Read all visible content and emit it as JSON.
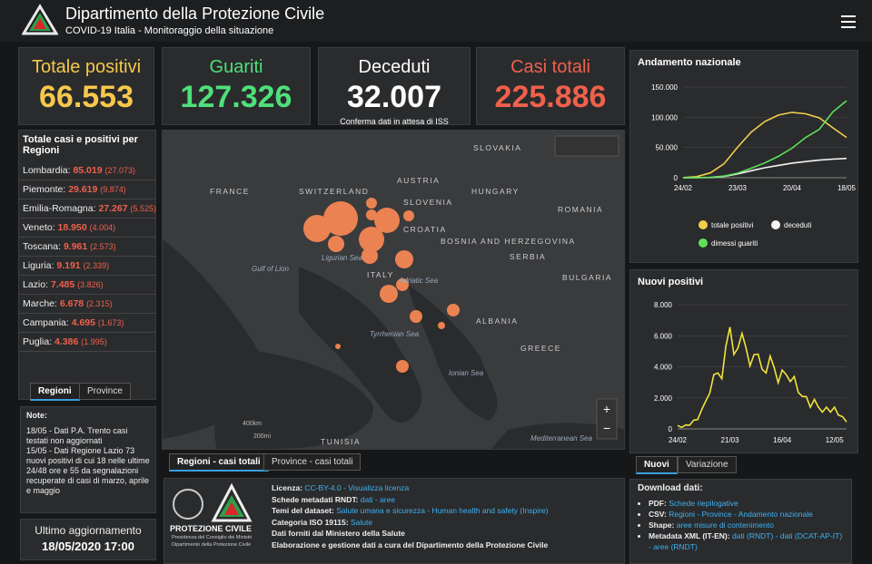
{
  "header": {
    "title": "Dipartimento della Protezione Civile",
    "subtitle": "COVID-19 Italia - Monitoraggio della situazione"
  },
  "kpis": [
    {
      "label": "Totale positivi",
      "value": "66.553",
      "color": "#f6c84b"
    },
    {
      "label": "Guariti",
      "value": "127.326",
      "color": "#4ee07a"
    },
    {
      "label": "Deceduti",
      "value": "32.007",
      "note": "Conferma dati in attesa di ISS",
      "color": "#ffffff"
    },
    {
      "label": "Casi totali",
      "value": "225.886",
      "color": "#f0604c"
    }
  ],
  "regions": {
    "title": "Totale casi e positivi per Regioni",
    "rows": [
      {
        "name": "Lombardia:",
        "total": "85.019",
        "positives": "(27.073)"
      },
      {
        "name": "Piemonte:",
        "total": "29.619",
        "positives": "(9.874)"
      },
      {
        "name": "Emilia-Romagna:",
        "total": "27.267",
        "positives": "(5.525)"
      },
      {
        "name": "Veneto:",
        "total": "18.950",
        "positives": "(4.004)"
      },
      {
        "name": "Toscana:",
        "total": "9.961",
        "positives": "(2.573)"
      },
      {
        "name": "Liguria:",
        "total": "9.191",
        "positives": "(2.339)"
      },
      {
        "name": "Lazio:",
        "total": "7.485",
        "positives": "(3.826)"
      },
      {
        "name": "Marche:",
        "total": "6.678",
        "positives": "(2.315)"
      },
      {
        "name": "Campania:",
        "total": "4.695",
        "positives": "(1.673)"
      },
      {
        "name": "Puglia:",
        "total": "4.386",
        "positives": "(1.995)"
      }
    ],
    "tabs": [
      "Regioni",
      "Province"
    ]
  },
  "notes": {
    "title": "Note:",
    "items": [
      "18/05 - Dati P.A. Trento casi testati non aggiornati",
      "15/05 - Dati Regione Lazio 73 nuovi positivi di cui 18 nelle ultime 24/48 ore e 55 da segnalazioni recuperate di casi di marzo, aprile e maggio"
    ]
  },
  "update": {
    "label": "Ultimo aggiornamento",
    "value": "18/05/2020 17:00"
  },
  "map": {
    "labels": [
      "FRANCE",
      "SWITZERLAND",
      "AUSTRIA",
      "SLOVAKIA",
      "HUNGARY",
      "SLOVENIA",
      "CROATIA",
      "ROMANIA",
      "BOSNIA AND HERZEGOVINA",
      "SERBIA",
      "BULGARIA",
      "ITALY",
      "Ligurian Sea",
      "Gulf of Lion",
      "Adriatic Sea",
      "Tyrrhenian Sea",
      "ALBANIA",
      "GREECE",
      "Ionian Sea",
      "TUNISIA",
      "Mediterranean Sea"
    ],
    "scale": [
      "400km",
      "200mi"
    ],
    "tabs": [
      "Regioni - casi totali",
      "Province - casi totali"
    ]
  },
  "logo": {
    "name": "PROTEZIONE CIVILE",
    "lines": [
      "Presidenza del Consiglio dei Ministri",
      "Dipartimento della Protezione Civile"
    ]
  },
  "info": [
    {
      "label": "Licenza:",
      "text": "CC-BY-4.0 - Visualizza licenza"
    },
    {
      "label": "Schede metadati RNDT:",
      "text": "dati - aree"
    },
    {
      "label": "Temi del dataset:",
      "text": "Salute umana e sicurezza - Human health and safety (Inspire)"
    },
    {
      "label": "Categoria ISO 19115:",
      "text": "Salute"
    },
    {
      "label": "Dati forniti dal Ministero della Salute"
    },
    {
      "label": "Elaborazione e gestione dati a cura del Dipartimento della Protezione Civile"
    }
  ],
  "download": {
    "title": "Download dati:",
    "items": [
      {
        "label": "PDF:",
        "text": "Schede riepilogative"
      },
      {
        "label": "CSV:",
        "text": "Regioni - Province - Andamento nazionale"
      },
      {
        "label": "Shape:",
        "text": "aree misure di contenimento"
      },
      {
        "label": "Metadata XML (IT-EN):",
        "text": "dati (RNDT) - dati (DCAT-AP-IT) - aree (RNDT)"
      }
    ]
  },
  "chart_tabs": [
    "Nuovi",
    "Variazione"
  ],
  "chart_data": [
    {
      "type": "line",
      "title": "Andamento nazionale",
      "categories": [
        "24/02",
        null,
        null,
        null,
        "23/03",
        null,
        null,
        null,
        "20/04",
        null,
        null,
        null,
        "18/05"
      ],
      "series": [
        {
          "name": "totale positivi",
          "color": "#f2cf4a",
          "values": [
            200,
            1800,
            7900,
            23000,
            50400,
            75500,
            93000,
            103600,
            108200,
            105800,
            99000,
            82500,
            66553
          ]
        },
        {
          "name": "deceduti",
          "color": "#f4f4f4",
          "values": [
            7,
            52,
            460,
            2160,
            6080,
            11590,
            16520,
            20460,
            24110,
            26640,
            29080,
            30740,
            32007
          ]
        },
        {
          "name": "dimessi guariti",
          "color": "#5ee25a",
          "values": [
            1,
            150,
            720,
            2750,
            7430,
            15730,
            24400,
            35430,
            48880,
            66620,
            79910,
            109040,
            127326
          ]
        }
      ],
      "ylim": [
        0,
        150000
      ],
      "yticks": [
        0,
        {
          "value": 50000,
          "label": "50.000"
        },
        {
          "value": 100000,
          "label": "100.000"
        },
        {
          "value": 150000,
          "label": "150.000"
        }
      ]
    },
    {
      "type": "line",
      "title": "Nuovi positivi",
      "categories": [
        "24/02",
        null,
        null,
        null,
        null,
        null,
        null,
        null,
        null,
        null,
        null,
        null,
        null,
        "21/03",
        null,
        null,
        null,
        null,
        null,
        null,
        null,
        null,
        null,
        null,
        null,
        null,
        "16/04",
        null,
        null,
        null,
        null,
        null,
        null,
        null,
        null,
        null,
        null,
        null,
        null,
        "12/05",
        null,
        null,
        null
      ],
      "series": [
        {
          "name": "Nuovi positivi",
          "color": "#f2e23a",
          "values": [
            220,
            100,
            250,
            240,
            560,
            600,
            1250,
            1800,
            2300,
            3500,
            3600,
            3230,
            5320,
            6560,
            4790,
            5210,
            6150,
            5220,
            4050,
            4780,
            4810,
            3840,
            3600,
            4690,
            3950,
            2970,
            3790,
            3490,
            3050,
            3370,
            2350,
            2090,
            2080,
            1390,
            1900,
            1400,
            1080,
            1400,
            1080,
            1400,
            890,
            790,
            450
          ]
        }
      ],
      "ylim": [
        0,
        8000
      ],
      "yticks": [
        0,
        {
          "value": 2000,
          "label": "2.000"
        },
        {
          "value": 4000,
          "label": "4.000"
        },
        {
          "value": 6000,
          "label": "6.000"
        },
        {
          "value": 8000,
          "label": "8.000"
        }
      ]
    }
  ]
}
